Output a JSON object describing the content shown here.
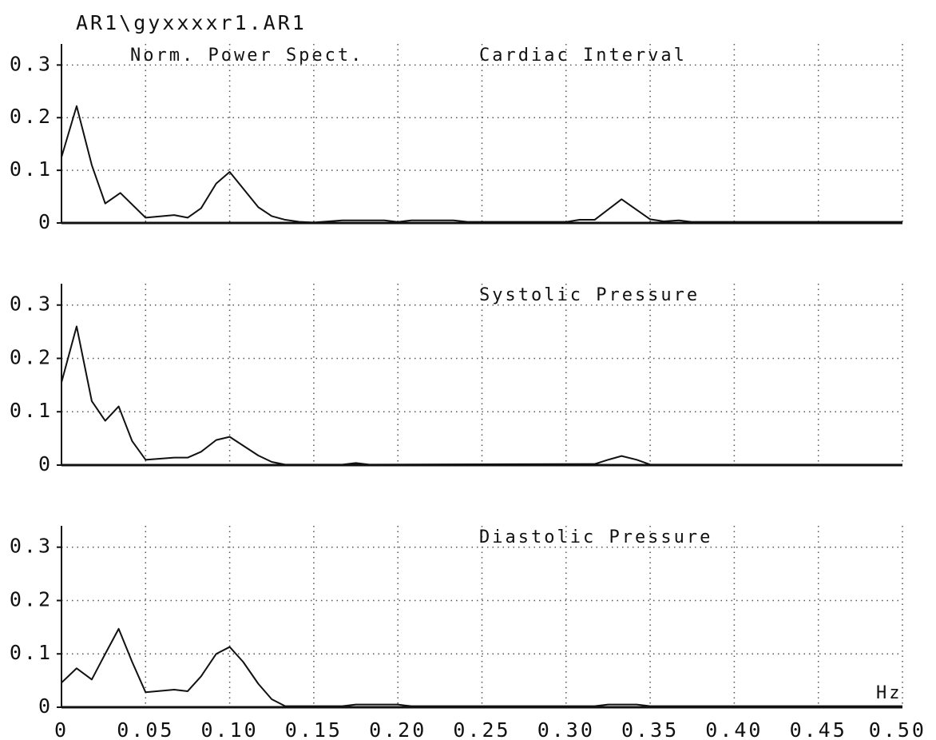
{
  "header": {
    "file": "AR1\\gyxxxxr1.AR1",
    "label": "Norm. Power Spect."
  },
  "chart_data": [
    {
      "type": "line",
      "title": "Cardiac Interval",
      "color": "#111111",
      "ylim": [
        0,
        0.34
      ],
      "yticks": [
        0,
        0.1,
        0.2,
        0.3
      ],
      "grid": true,
      "x": [
        0,
        0.009,
        0.018,
        0.026,
        0.035,
        0.05,
        0.067,
        0.075,
        0.083,
        0.092,
        0.1,
        0.117,
        0.125,
        0.133,
        0.142,
        0.15,
        0.167,
        0.192,
        0.2,
        0.208,
        0.233,
        0.242,
        0.3,
        0.308,
        0.317,
        0.333,
        0.35,
        0.358,
        0.367,
        0.375,
        0.5
      ],
      "values": [
        0.125,
        0.222,
        0.11,
        0.037,
        0.057,
        0.01,
        0.015,
        0.01,
        0.028,
        0.075,
        0.097,
        0.03,
        0.013,
        0.006,
        0.002,
        0.001,
        0.005,
        0.005,
        0.002,
        0.005,
        0.005,
        0.002,
        0.002,
        0.006,
        0.006,
        0.045,
        0.007,
        0.003,
        0.005,
        0.002,
        0.002
      ]
    },
    {
      "type": "line",
      "title": "Systolic Pressure",
      "color": "#111111",
      "ylim": [
        0,
        0.34
      ],
      "yticks": [
        0,
        0.1,
        0.2,
        0.3
      ],
      "grid": true,
      "x": [
        0,
        0.009,
        0.018,
        0.026,
        0.034,
        0.042,
        0.05,
        0.067,
        0.075,
        0.083,
        0.092,
        0.1,
        0.117,
        0.125,
        0.133,
        0.167,
        0.175,
        0.183,
        0.317,
        0.325,
        0.333,
        0.342,
        0.35,
        0.5
      ],
      "values": [
        0.155,
        0.26,
        0.12,
        0.083,
        0.11,
        0.045,
        0.01,
        0.014,
        0.014,
        0.025,
        0.047,
        0.053,
        0.018,
        0.006,
        0.001,
        0.001,
        0.004,
        0.001,
        0.002,
        0.01,
        0.017,
        0.01,
        0.001,
        0.001
      ]
    },
    {
      "type": "line",
      "title": "Diastolic Pressure",
      "color": "#111111",
      "ylim": [
        0,
        0.34
      ],
      "yticks": [
        0,
        0.1,
        0.2,
        0.3
      ],
      "grid": true,
      "xlabel": "Hz",
      "xlim": [
        0,
        0.5
      ],
      "xticks": [
        0,
        0.05,
        {
          "value": 0.1,
          "label": "0.10"
        },
        0.15,
        {
          "value": 0.2,
          "label": "0.20"
        },
        0.25,
        {
          "value": 0.3,
          "label": "0.30"
        },
        0.35,
        {
          "value": 0.4,
          "label": "0.40"
        },
        0.45,
        {
          "value": 0.5,
          "label": "0.50"
        }
      ],
      "x": [
        0,
        0.009,
        0.018,
        0.026,
        0.034,
        0.042,
        0.05,
        0.067,
        0.075,
        0.083,
        0.092,
        0.1,
        0.108,
        0.117,
        0.125,
        0.133,
        0.167,
        0.175,
        0.2,
        0.208,
        0.317,
        0.325,
        0.342,
        0.35,
        0.5
      ],
      "values": [
        0.046,
        0.073,
        0.052,
        0.1,
        0.147,
        0.085,
        0.028,
        0.033,
        0.03,
        0.058,
        0.1,
        0.113,
        0.085,
        0.044,
        0.015,
        0.002,
        0.002,
        0.005,
        0.005,
        0.002,
        0.002,
        0.005,
        0.005,
        0.002,
        0.002
      ]
    }
  ]
}
